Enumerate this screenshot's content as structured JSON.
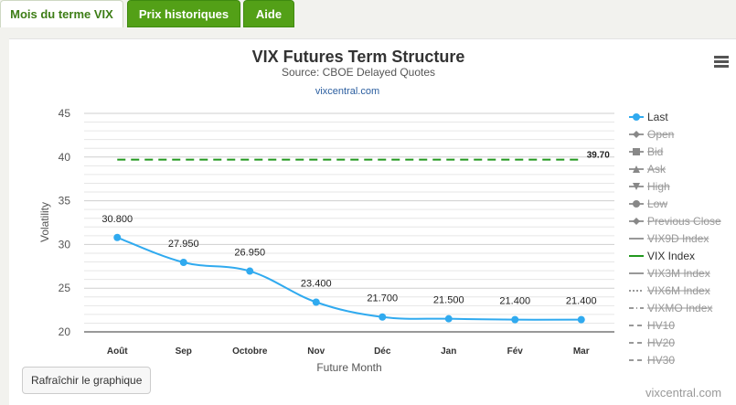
{
  "tabs": [
    {
      "label": "Mois du terme VIX"
    },
    {
      "label": "Prix historiques"
    },
    {
      "label": "Aide"
    }
  ],
  "refresh_label": "Rafraîchir le graphique",
  "credit": "vixcentral.com",
  "colors": {
    "last": "#30aaef",
    "vix": "#22981e",
    "tab_green": "#53a017"
  },
  "chart_data": {
    "type": "line",
    "title": "VIX Futures Term Structure",
    "subtitle": "Source: CBOE Delayed Quotes",
    "link": "vixcentral.com",
    "xlabel": "Future Month",
    "ylabel": "Volatility",
    "categories": [
      "Août",
      "Sep",
      "Octobre",
      "Nov",
      "Déc",
      "Jan",
      "Fév",
      "Mar"
    ],
    "ylim": [
      20,
      45
    ],
    "yticks": [
      20,
      25,
      30,
      35,
      40,
      45
    ],
    "grid": true,
    "legend_position": "right",
    "series": [
      {
        "name": "Last",
        "values": [
          30.8,
          27.95,
          26.95,
          23.4,
          21.7,
          21.5,
          21.4,
          21.4
        ],
        "labels": [
          "30.800",
          "27.950",
          "26.950",
          "23.400",
          "21.700",
          "21.500",
          "21.400",
          "21.400"
        ]
      },
      {
        "name": "VIX Index",
        "values": [
          39.7,
          39.7,
          39.7,
          39.7,
          39.7,
          39.7,
          39.7,
          39.7
        ],
        "end_label": "39.70"
      }
    ],
    "legend": [
      {
        "name": "Last",
        "enabled": true,
        "symbol": "circle-line"
      },
      {
        "name": "Open",
        "enabled": false,
        "symbol": "diamond-line"
      },
      {
        "name": "Bid",
        "enabled": false,
        "symbol": "square-line"
      },
      {
        "name": "Ask",
        "enabled": false,
        "symbol": "triangle-line"
      },
      {
        "name": "High",
        "enabled": false,
        "symbol": "triangle-down-line"
      },
      {
        "name": "Low",
        "enabled": false,
        "symbol": "circle-line"
      },
      {
        "name": "Previous Close",
        "enabled": false,
        "symbol": "diamond-line"
      },
      {
        "name": "VIX9D Index",
        "enabled": false,
        "symbol": "line"
      },
      {
        "name": "VIX Index",
        "enabled": true,
        "symbol": "line"
      },
      {
        "name": "VIX3M Index",
        "enabled": false,
        "symbol": "line"
      },
      {
        "name": "VIX6M Index",
        "enabled": false,
        "symbol": "dotted-line"
      },
      {
        "name": "VIXMO Index",
        "enabled": false,
        "symbol": "dashdot-line"
      },
      {
        "name": "HV10",
        "enabled": false,
        "symbol": "dash-line"
      },
      {
        "name": "HV20",
        "enabled": false,
        "symbol": "dash-line"
      },
      {
        "name": "HV30",
        "enabled": false,
        "symbol": "dash-line"
      }
    ]
  }
}
